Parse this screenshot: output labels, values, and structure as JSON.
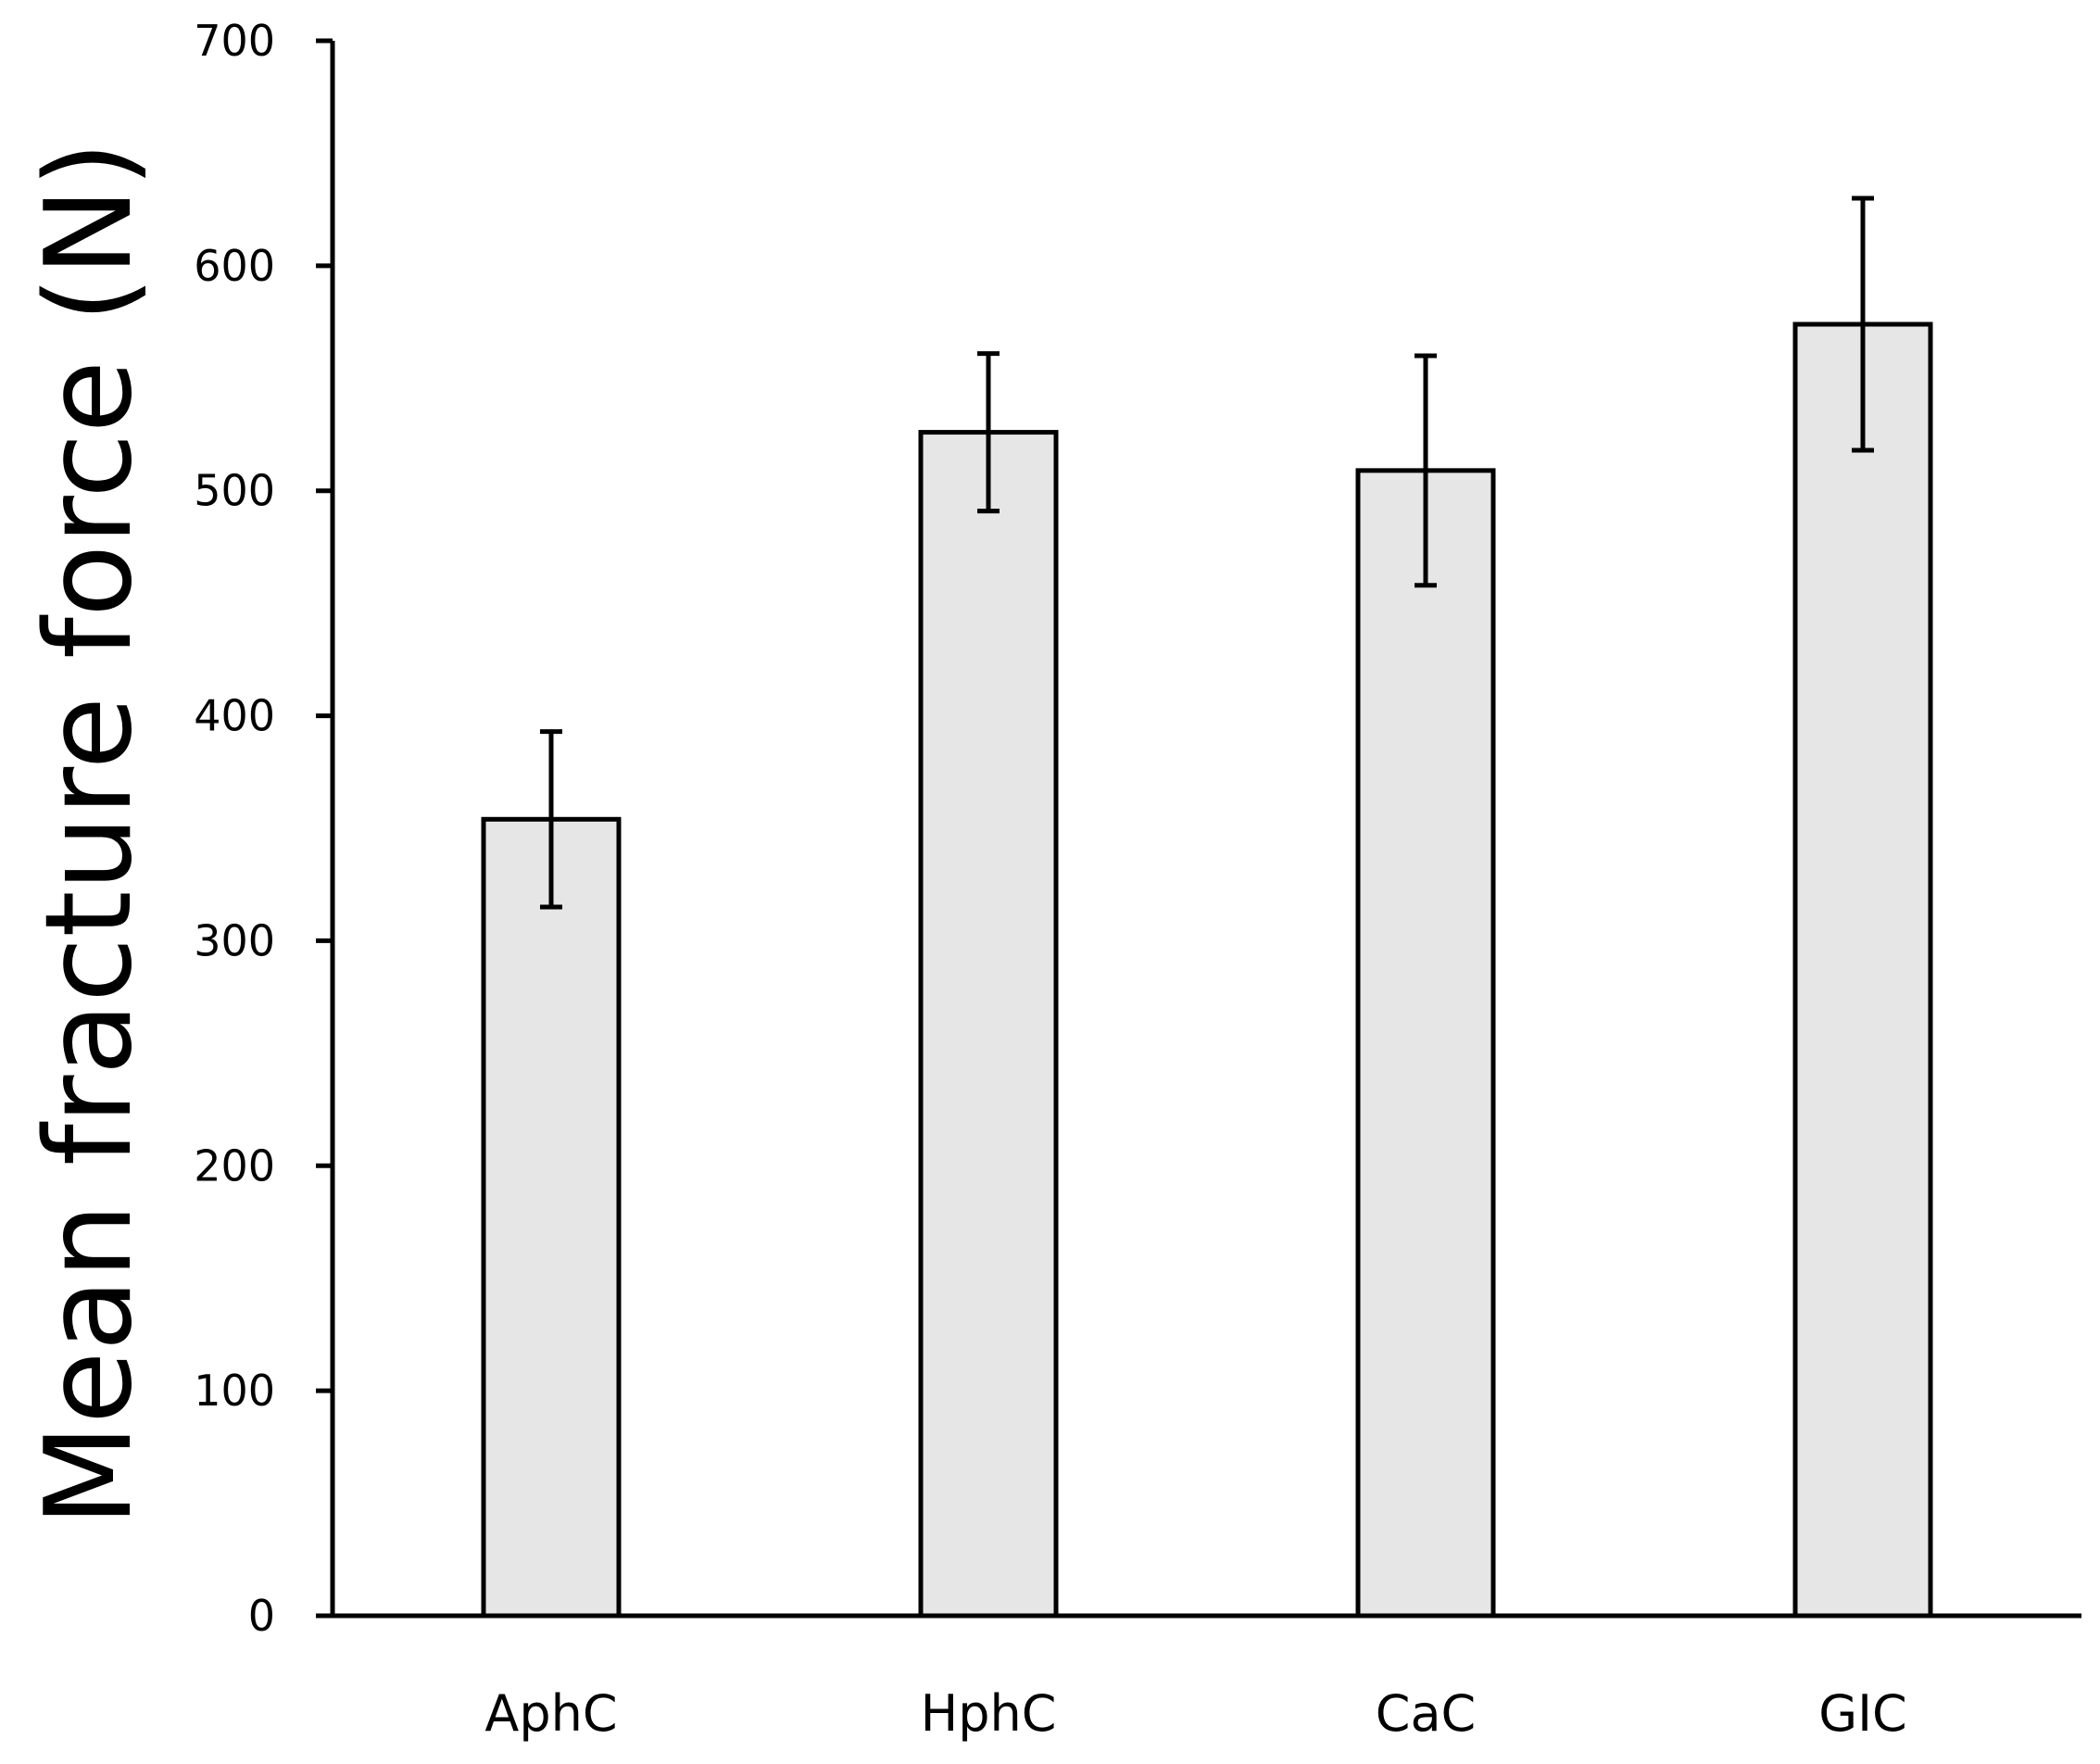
{
  "chart_data": {
    "type": "bar",
    "title": "",
    "xlabel": "",
    "ylabel": "Mean fracture force (N)",
    "categories": [
      "AphC",
      "HphC",
      "CaC",
      "GIC"
    ],
    "values": [
      354,
      526,
      509,
      574
    ],
    "errors": [
      39,
      35,
      51,
      56
    ],
    "ylim": [
      0,
      700
    ],
    "yticks": [
      0,
      100,
      200,
      300,
      400,
      500,
      600,
      700
    ],
    "grid": false,
    "legend": "none",
    "colors": {
      "bar_fill": "#e6e6e6",
      "bar_stroke": "#000000",
      "axis": "#000000",
      "error_bar": "#000000"
    }
  }
}
